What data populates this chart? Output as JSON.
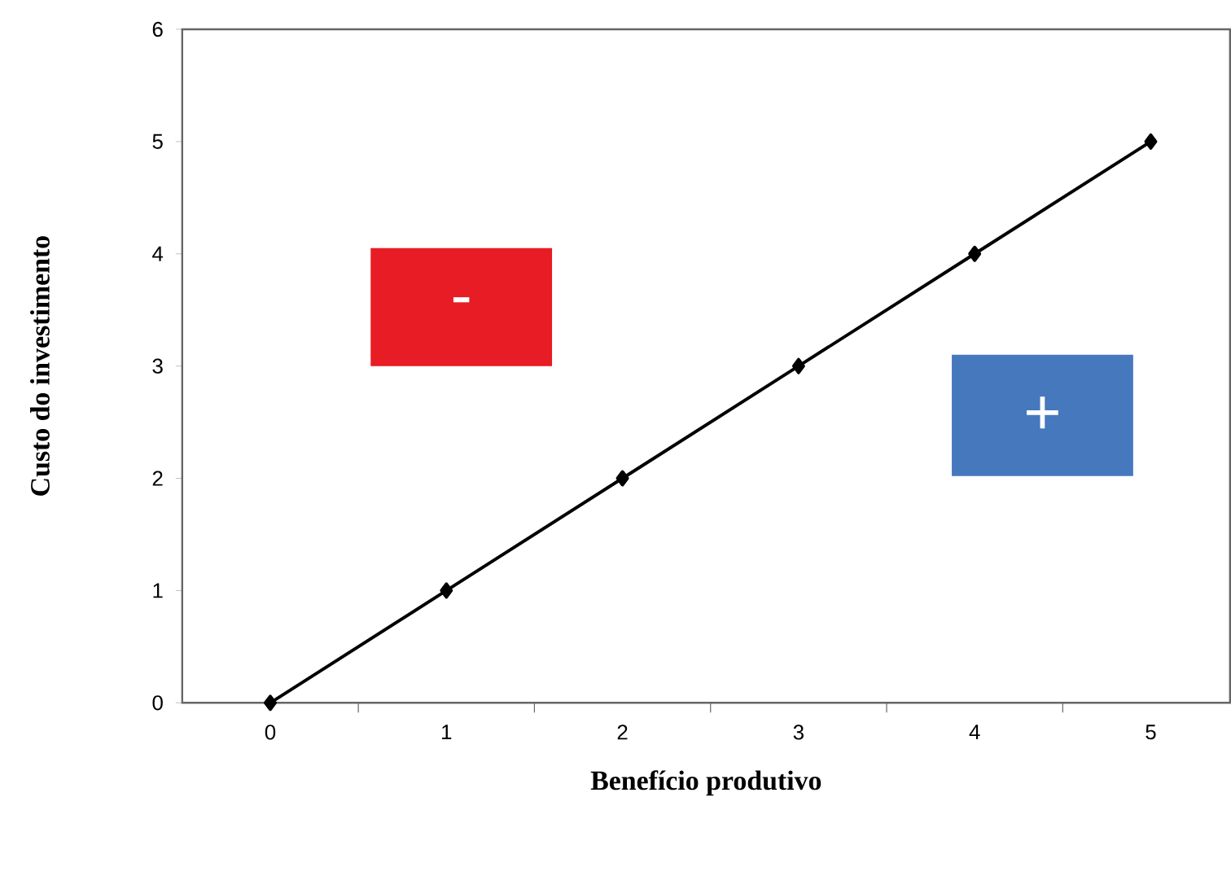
{
  "chart_data": {
    "type": "line",
    "xlabel": "Benefício produtivo",
    "ylabel": "Custo do investimento",
    "x": [
      0,
      1,
      2,
      3,
      4,
      5
    ],
    "series": [
      {
        "color": "#000000",
        "values": [
          0,
          1,
          2,
          3,
          4,
          5
        ]
      }
    ],
    "xlim": [
      -0.5,
      5.45
    ],
    "ylim": [
      0,
      6
    ],
    "xticks": [
      0,
      1,
      2,
      3,
      4,
      5
    ],
    "yticks": [
      0,
      1,
      2,
      3,
      4,
      5,
      6
    ],
    "marker": "diamond",
    "line_style": "solid",
    "grid": false,
    "annotations": [
      "-",
      "+"
    ]
  }
}
